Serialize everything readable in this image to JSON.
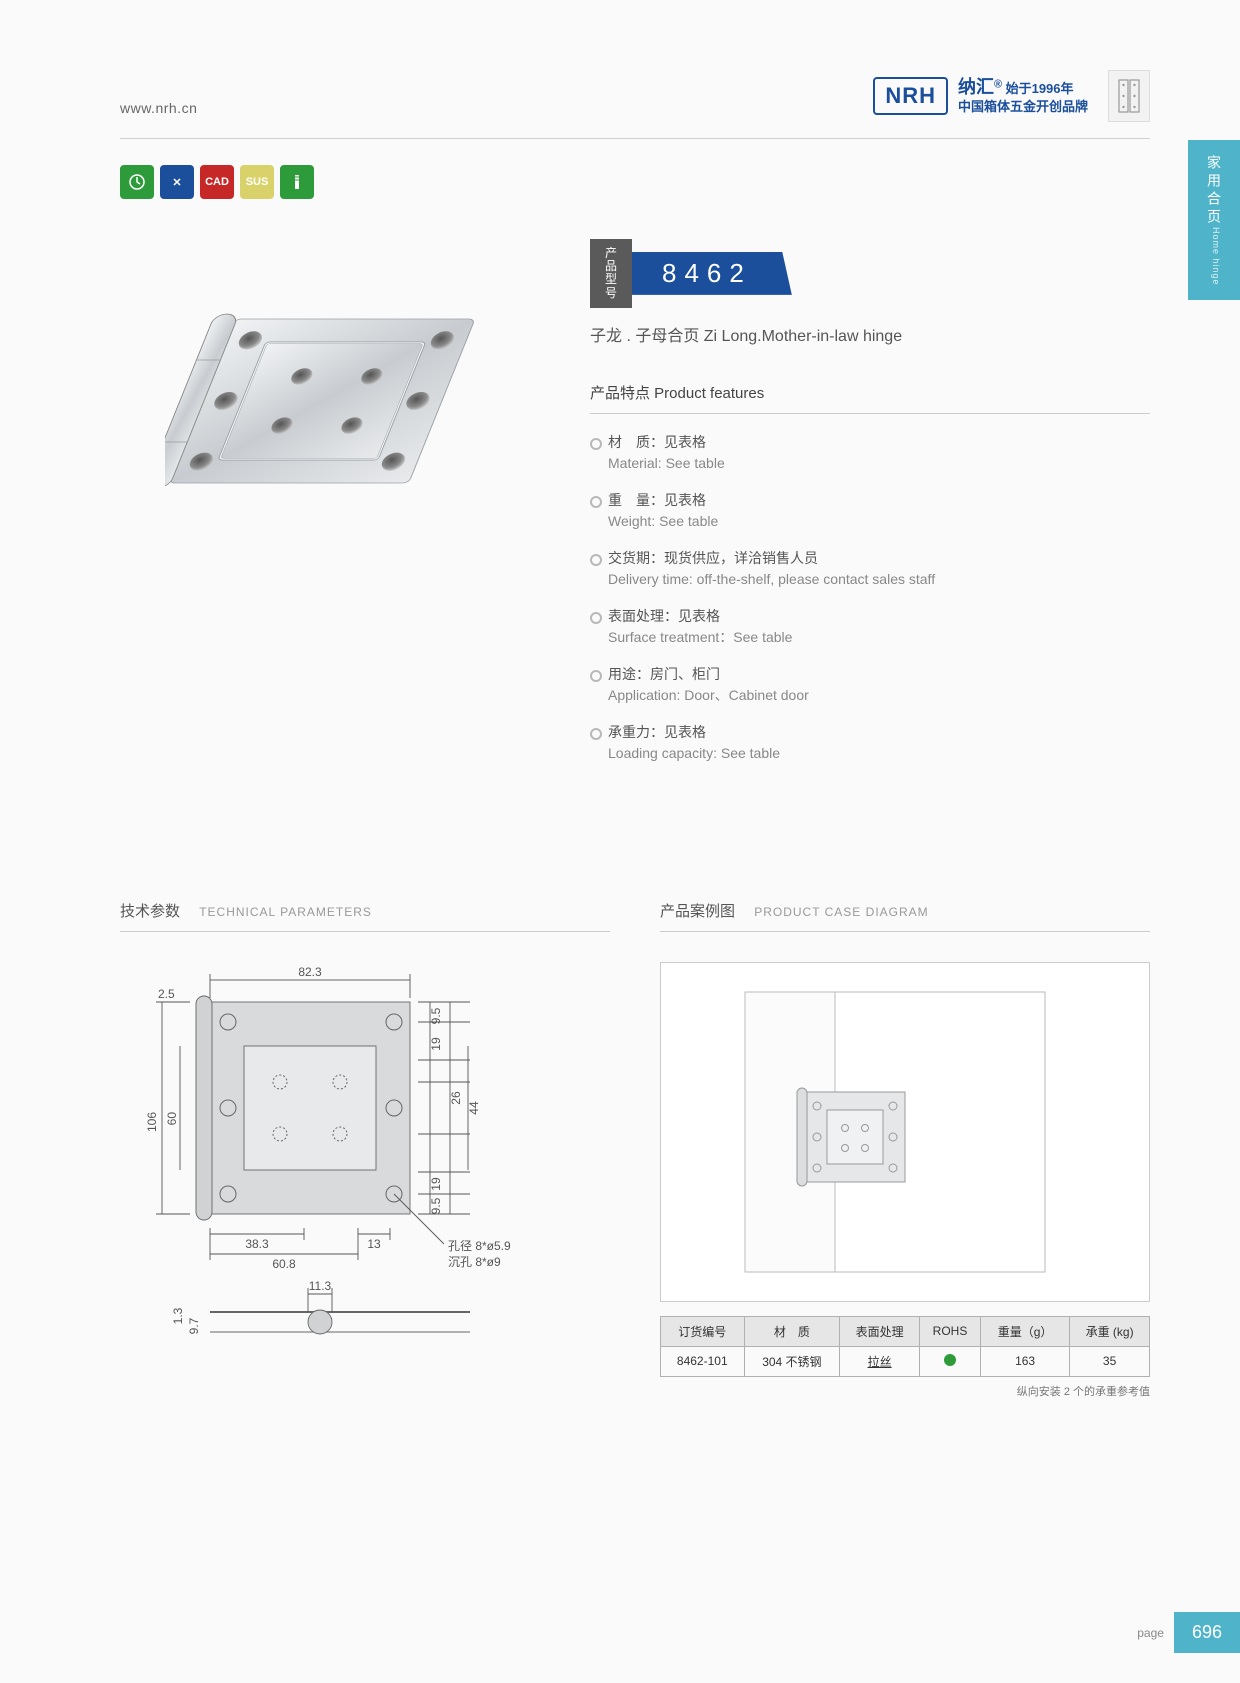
{
  "header": {
    "url": "www.nrh.cn",
    "logo": "NRH",
    "brand_cn": "纳汇",
    "brand_since": "始于1996年",
    "brand_sub": "中国箱体五金开创品牌"
  },
  "side_tab": {
    "cn": "家用合页",
    "en": "Home hinge"
  },
  "icon_badges": [
    {
      "label": "",
      "color": "#2e9b3a"
    },
    {
      "label": "✕",
      "color": "#1b4f9c"
    },
    {
      "label": "CAD",
      "color": "#c62828"
    },
    {
      "label": "SUS",
      "color": "#d9d26b"
    },
    {
      "label": "",
      "color": "#2e9b3a"
    }
  ],
  "model": {
    "label": "产品\n型号",
    "number": "8462"
  },
  "subtitle": "子龙 . 子母合页   Zi Long.Mother-in-law hinge",
  "features_title": "产品特点 Product features",
  "features": [
    {
      "cn": "材　质：见表格",
      "en": "Material: See table"
    },
    {
      "cn": "重　量：见表格",
      "en": "Weight: See table"
    },
    {
      "cn": "交货期：现货供应，详洽销售人员",
      "en": "Delivery time: off-the-shelf, please contact sales staff"
    },
    {
      "cn": "表面处理：见表格",
      "en": "Surface treatment：See table"
    },
    {
      "cn": "用途：房门、柜门",
      "en": "Application: Door、Cabinet door"
    },
    {
      "cn": "承重力：见表格",
      "en": "Loading capacity: See table"
    }
  ],
  "tech_title": {
    "cn": "技术参数",
    "en": "TECHNICAL PARAMETERS"
  },
  "case_title": {
    "cn": "产品案例图",
    "en": "PRODUCT CASE DIAGRAM"
  },
  "dimensions": {
    "overall_w": "82.3",
    "overall_h": "106",
    "inner_h": "60",
    "top_margin": "2.5",
    "right_9_5a": "9.5",
    "right_19a": "19",
    "right_26": "26",
    "right_44": "44",
    "right_19b": "19",
    "right_9_5b": "9.5",
    "bot_38_3": "38.3",
    "bot_60_8": "60.8",
    "bot_13": "13",
    "hole_note1": "孔径 8*ø5.9",
    "hole_note2": "沉孔 8*ø9",
    "side_1_3": "1.3",
    "side_9_7": "9.7",
    "side_11_3": "11.3"
  },
  "spec_table": {
    "headers": [
      "订货编号",
      "材　质",
      "表面处理",
      "ROHS",
      "重量（g）",
      "承重 (kg)"
    ],
    "rows": [
      {
        "code": "8462-101",
        "material": "304 不锈钢",
        "surface": "拉丝",
        "rohs": true,
        "weight": "163",
        "load": "35"
      }
    ],
    "note": "纵向安装 2 个的承重参考值"
  },
  "footer": {
    "label": "page",
    "number": "696"
  }
}
